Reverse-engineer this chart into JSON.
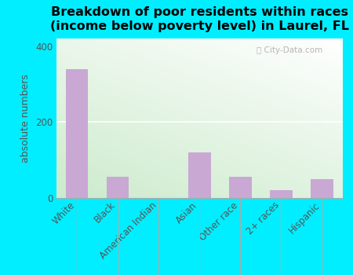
{
  "categories": [
    "White",
    "Black",
    "American Indian",
    "Asian",
    "Other race",
    "2+ races",
    "Hispanic"
  ],
  "values": [
    340,
    55,
    0,
    120,
    55,
    20,
    50
  ],
  "bar_color": "#c9a8d4",
  "title": "Breakdown of poor residents within races\n(income below poverty level) in Laurel, FL",
  "ylabel": "absolute numbers",
  "ylim": [
    0,
    420
  ],
  "yticks": [
    0,
    200,
    400
  ],
  "background_outer": "#00eeff",
  "title_fontsize": 11.5,
  "axis_label_fontsize": 9,
  "tick_fontsize": 8.5,
  "bar_width": 0.55,
  "watermark": "City-Data.com"
}
